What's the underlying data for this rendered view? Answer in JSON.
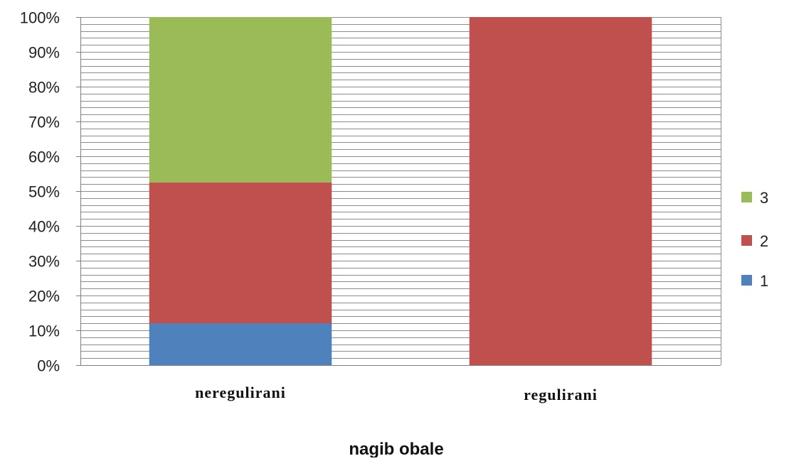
{
  "chart_data": {
    "type": "bar",
    "stacked": true,
    "percent": true,
    "categories": [
      "neregulirani",
      "regulirani"
    ],
    "series": [
      {
        "name": "1",
        "values": [
          12,
          0
        ],
        "color": "#4f81bd"
      },
      {
        "name": "2",
        "values": [
          40.5,
          100
        ],
        "color": "#c0504d"
      },
      {
        "name": "3",
        "values": [
          47.5,
          0
        ],
        "color": "#9bbb59"
      }
    ],
    "xlabel": "nagib obale",
    "ylabel": "",
    "ylim": [
      0,
      100
    ],
    "y_ticks": [
      "0%",
      "10%",
      "20%",
      "30%",
      "40%",
      "50%",
      "60%",
      "70%",
      "80%",
      "90%",
      "100%"
    ],
    "grid": true,
    "legend": "right",
    "legend_order": [
      "3",
      "2",
      "1"
    ]
  }
}
